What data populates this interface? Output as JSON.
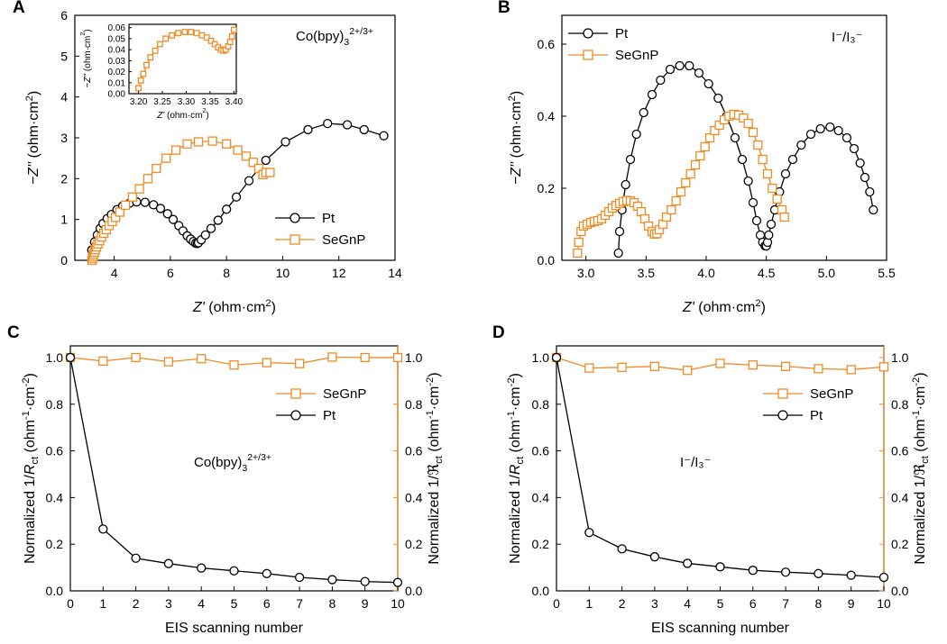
{
  "colors": {
    "pt": "#000000",
    "segnp": "#f08a24",
    "axis": "#000000"
  },
  "chart_data": [
    {
      "id": "A",
      "type": "line",
      "panel_label": "A",
      "xlabel_main": "Z'",
      "xlabel_unit": " (ohm·cm",
      "xlabel_exp": "2",
      "xlabel_close": ")",
      "ylabel_main": "−Z''",
      "ylabel_unit": " (ohm·cm",
      "ylabel_exp": "2",
      "ylabel_close": ")",
      "xlim": [
        2.6,
        14
      ],
      "ylim": [
        0,
        6
      ],
      "xticks": [
        4,
        6,
        8,
        10,
        12,
        14
      ],
      "yticks": [
        0,
        1,
        2,
        3,
        4,
        5,
        6
      ],
      "annotation": {
        "base": "Co(bpy)",
        "sub": "3",
        "sup": "2+/3+"
      },
      "legend": [
        "Pt",
        "SeGnP"
      ],
      "series": [
        {
          "name": "Pt",
          "color_key": "pt",
          "marker": "circle",
          "x": [
            3.2,
            3.3,
            3.4,
            3.5,
            3.6,
            3.75,
            3.9,
            4.1,
            4.3,
            4.55,
            4.8,
            5.1,
            5.4,
            5.65,
            5.9,
            6.1,
            6.3,
            6.45,
            6.6,
            6.72,
            6.82,
            6.9,
            6.96,
            7.0,
            7.1,
            7.25,
            7.45,
            7.7,
            8.0,
            8.35,
            8.8,
            9.4,
            10.1,
            10.9,
            11.6,
            12.3,
            12.9,
            13.6
          ],
          "y": [
            0.25,
            0.45,
            0.62,
            0.78,
            0.9,
            1.02,
            1.12,
            1.24,
            1.33,
            1.4,
            1.43,
            1.42,
            1.36,
            1.27,
            1.14,
            1.0,
            0.85,
            0.72,
            0.6,
            0.52,
            0.46,
            0.42,
            0.41,
            0.43,
            0.5,
            0.62,
            0.78,
            0.98,
            1.25,
            1.55,
            1.95,
            2.45,
            2.9,
            3.2,
            3.35,
            3.32,
            3.2,
            3.05
          ]
        },
        {
          "name": "SeGnP",
          "color_key": "segnp",
          "marker": "square",
          "x": [
            3.21,
            3.23,
            3.25,
            3.27,
            3.3,
            3.33,
            3.37,
            3.42,
            3.48,
            3.55,
            3.63,
            3.72,
            3.82,
            3.93,
            4.05,
            4.2,
            4.4,
            4.65,
            4.9,
            5.2,
            5.5,
            5.85,
            6.2,
            6.6,
            7.0,
            7.5,
            8.0,
            8.4,
            8.7,
            8.95,
            9.15,
            9.3,
            9.4,
            9.55
          ],
          "y": [
            0.0,
            0.05,
            0.1,
            0.15,
            0.2,
            0.26,
            0.33,
            0.4,
            0.48,
            0.57,
            0.66,
            0.75,
            0.85,
            0.95,
            1.05,
            1.18,
            1.35,
            1.55,
            1.75,
            2.0,
            2.25,
            2.5,
            2.7,
            2.85,
            2.9,
            2.92,
            2.85,
            2.7,
            2.55,
            2.4,
            2.25,
            2.1,
            2.15,
            2.15
          ]
        }
      ],
      "inset": {
        "type": "line",
        "xlabel_main": "Z'",
        "xlabel_unit": " (ohm·cm",
        "xlabel_exp": "2",
        "xlabel_close": ")",
        "ylabel_main": "−Z''",
        "ylabel_unit": " (ohm·cm",
        "ylabel_exp": "2",
        "ylabel_close": ")",
        "xlim": [
          3.18,
          3.405
        ],
        "ylim": [
          0,
          0.063
        ],
        "xticks": [
          "3.20",
          "3.25",
          "3.30",
          "3.35",
          "3.40"
        ],
        "yticks": [
          "0.00",
          "0.01",
          "0.02",
          "0.03",
          "0.04",
          "0.05",
          "0.06"
        ],
        "series": [
          {
            "name": "SeGnP",
            "color_key": "segnp",
            "marker": "square",
            "x": [
              3.2,
              3.205,
              3.21,
              3.217,
              3.225,
              3.235,
              3.245,
              3.257,
              3.27,
              3.283,
              3.297,
              3.31,
              3.322,
              3.333,
              3.343,
              3.352,
              3.36,
              3.367,
              3.373,
              3.378,
              3.383,
              3.388,
              3.392,
              3.396,
              3.4
            ],
            "y": [
              0.005,
              0.012,
              0.018,
              0.026,
              0.033,
              0.039,
              0.045,
              0.05,
              0.053,
              0.055,
              0.056,
              0.056,
              0.055,
              0.053,
              0.051,
              0.048,
              0.045,
              0.042,
              0.04,
              0.039,
              0.04,
              0.043,
              0.047,
              0.052,
              0.058
            ]
          }
        ]
      }
    },
    {
      "id": "B",
      "type": "line",
      "panel_label": "B",
      "xlabel_main": "Z'",
      "xlabel_unit": " (ohm·cm",
      "xlabel_exp": "2",
      "xlabel_close": ")",
      "ylabel_main": "−Z''",
      "ylabel_unit": " (ohm·cm",
      "ylabel_exp": "2",
      "ylabel_close": ")",
      "xlim": [
        2.8,
        5.5
      ],
      "ylim": [
        0,
        0.68
      ],
      "xticks": [
        "3.0",
        "3.5",
        "4.0",
        "4.5",
        "5.0",
        "5.5"
      ],
      "yticks": [
        "0.0",
        "0.2",
        "0.4",
        "0.6"
      ],
      "annotation": {
        "text": "I⁻/I₃⁻"
      },
      "legend": [
        "Pt",
        "SeGnP"
      ],
      "series": [
        {
          "name": "Pt",
          "color_key": "pt",
          "marker": "circle",
          "x": [
            3.27,
            3.28,
            3.3,
            3.33,
            3.37,
            3.42,
            3.48,
            3.55,
            3.62,
            3.7,
            3.78,
            3.86,
            3.94,
            4.02,
            4.1,
            4.17,
            4.24,
            4.3,
            4.35,
            4.39,
            4.42,
            4.45,
            4.47,
            4.49,
            4.5,
            4.51,
            4.52,
            4.54,
            4.57,
            4.61,
            4.66,
            4.72,
            4.79,
            4.87,
            4.95,
            5.03,
            5.1,
            5.17,
            5.23,
            5.28,
            5.32,
            5.36,
            5.39
          ],
          "y": [
            0.02,
            0.08,
            0.14,
            0.21,
            0.28,
            0.35,
            0.41,
            0.46,
            0.5,
            0.53,
            0.54,
            0.54,
            0.52,
            0.49,
            0.45,
            0.4,
            0.34,
            0.28,
            0.22,
            0.16,
            0.11,
            0.07,
            0.05,
            0.04,
            0.04,
            0.05,
            0.07,
            0.1,
            0.14,
            0.19,
            0.24,
            0.28,
            0.32,
            0.35,
            0.365,
            0.37,
            0.36,
            0.34,
            0.31,
            0.27,
            0.23,
            0.19,
            0.14
          ]
        },
        {
          "name": "SeGnP",
          "color_key": "segnp",
          "marker": "square",
          "x": [
            2.93,
            2.94,
            2.96,
            2.98,
            3.01,
            3.04,
            3.07,
            3.1,
            3.13,
            3.16,
            3.19,
            3.22,
            3.25,
            3.28,
            3.31,
            3.34,
            3.37,
            3.4,
            3.43,
            3.46,
            3.49,
            3.52,
            3.55,
            3.57,
            3.59,
            3.61,
            3.64,
            3.67,
            3.71,
            3.75,
            3.79,
            3.83,
            3.87,
            3.91,
            3.95,
            3.99,
            4.03,
            4.07,
            4.11,
            4.15,
            4.19,
            4.23,
            4.27,
            4.31,
            4.35,
            4.39,
            4.43,
            4.47,
            4.51,
            4.55,
            4.59,
            4.63,
            4.65
          ],
          "y": [
            0.02,
            0.05,
            0.08,
            0.095,
            0.1,
            0.105,
            0.108,
            0.11,
            0.115,
            0.125,
            0.135,
            0.145,
            0.152,
            0.158,
            0.163,
            0.166,
            0.165,
            0.16,
            0.15,
            0.135,
            0.115,
            0.095,
            0.08,
            0.073,
            0.074,
            0.085,
            0.1,
            0.12,
            0.14,
            0.165,
            0.19,
            0.215,
            0.24,
            0.265,
            0.29,
            0.315,
            0.34,
            0.36,
            0.375,
            0.39,
            0.4,
            0.405,
            0.403,
            0.395,
            0.38,
            0.355,
            0.32,
            0.28,
            0.24,
            0.2,
            0.17,
            0.14,
            0.12
          ]
        }
      ]
    },
    {
      "id": "C",
      "type": "line",
      "panel_label": "C",
      "xlabel": "EIS scanning number",
      "ylabel_left_pre": "Normalized 1/",
      "ylabel_left_it": "R",
      "ylabel_left_sub": "ct",
      "ylabel_left_unit": " (ohm",
      "ylabel_left_exp1": "-1",
      "ylabel_left_mid": "·cm",
      "ylabel_left_exp2": "-2",
      "ylabel_left_close": ")",
      "ylabel_right_pre": "Normalized 1/",
      "ylabel_right_it": "ℜ",
      "ylabel_right_sub": "ct",
      "ylabel_right_unit": " (ohm",
      "ylabel_right_exp1": "-1",
      "ylabel_right_mid": "·cm",
      "ylabel_right_exp2": "-2",
      "ylabel_right_close": ")",
      "xlim": [
        0,
        10
      ],
      "ylim": [
        0,
        1.05
      ],
      "xticks": [
        "0",
        "1",
        "2",
        "3",
        "4",
        "5",
        "6",
        "7",
        "8",
        "9",
        "10"
      ],
      "yticks": [
        "0.0",
        "0.2",
        "0.4",
        "0.6",
        "0.8",
        "1.0"
      ],
      "annotation": {
        "base": "Co(bpy)",
        "sub": "3",
        "sup": "2+/3+"
      },
      "legend": [
        "SeGnP",
        "Pt"
      ],
      "series": [
        {
          "name": "SeGnP",
          "color_key": "segnp",
          "marker": "square",
          "axis": "right",
          "x": [
            0,
            1,
            2,
            3,
            4,
            5,
            6,
            7,
            8,
            9,
            10
          ],
          "y": [
            1.0,
            0.985,
            1.0,
            0.982,
            0.995,
            0.968,
            0.978,
            0.974,
            1.002,
            1.0,
            1.0
          ]
        },
        {
          "name": "Pt",
          "color_key": "pt",
          "marker": "circle",
          "axis": "left",
          "x": [
            0,
            1,
            2,
            3,
            4,
            5,
            6,
            7,
            8,
            9,
            10
          ],
          "y": [
            1.0,
            0.265,
            0.14,
            0.117,
            0.098,
            0.086,
            0.074,
            0.058,
            0.048,
            0.04,
            0.036
          ]
        }
      ]
    },
    {
      "id": "D",
      "type": "line",
      "panel_label": "D",
      "xlabel": "EIS scanning number",
      "ylabel_left_pre": "Normalized 1/",
      "ylabel_left_it": "R",
      "ylabel_left_sub": "ct",
      "ylabel_left_unit": " (ohm",
      "ylabel_left_exp1": "-1",
      "ylabel_left_mid": "·cm",
      "ylabel_left_exp2": "-2",
      "ylabel_left_close": ")",
      "ylabel_right_pre": "Normalized 1/",
      "ylabel_right_it": "ℜ",
      "ylabel_right_sub": "ct",
      "ylabel_right_unit": " (ohm",
      "ylabel_right_exp1": "-1",
      "ylabel_right_mid": "·cm",
      "ylabel_right_exp2": "-2",
      "ylabel_right_close": ")",
      "xlim": [
        0,
        10
      ],
      "ylim": [
        0,
        1.05
      ],
      "xticks": [
        "0",
        "1",
        "2",
        "3",
        "4",
        "5",
        "6",
        "7",
        "8",
        "9",
        "10"
      ],
      "yticks": [
        "0.0",
        "0.2",
        "0.4",
        "0.6",
        "0.8",
        "1.0"
      ],
      "annotation": {
        "text": "I⁻/I₃⁻"
      },
      "legend": [
        "SeGnP",
        "Pt"
      ],
      "series": [
        {
          "name": "SeGnP",
          "color_key": "segnp",
          "marker": "square",
          "axis": "right",
          "x": [
            0,
            1,
            2,
            3,
            4,
            5,
            6,
            7,
            8,
            9,
            10
          ],
          "y": [
            1.0,
            0.955,
            0.958,
            0.962,
            0.945,
            0.975,
            0.968,
            0.962,
            0.952,
            0.948,
            0.96
          ]
        },
        {
          "name": "Pt",
          "color_key": "pt",
          "marker": "circle",
          "axis": "left",
          "x": [
            0,
            1,
            2,
            3,
            4,
            5,
            6,
            7,
            8,
            9,
            10
          ],
          "y": [
            1.0,
            0.25,
            0.18,
            0.146,
            0.118,
            0.103,
            0.088,
            0.08,
            0.074,
            0.067,
            0.058
          ]
        }
      ]
    }
  ]
}
